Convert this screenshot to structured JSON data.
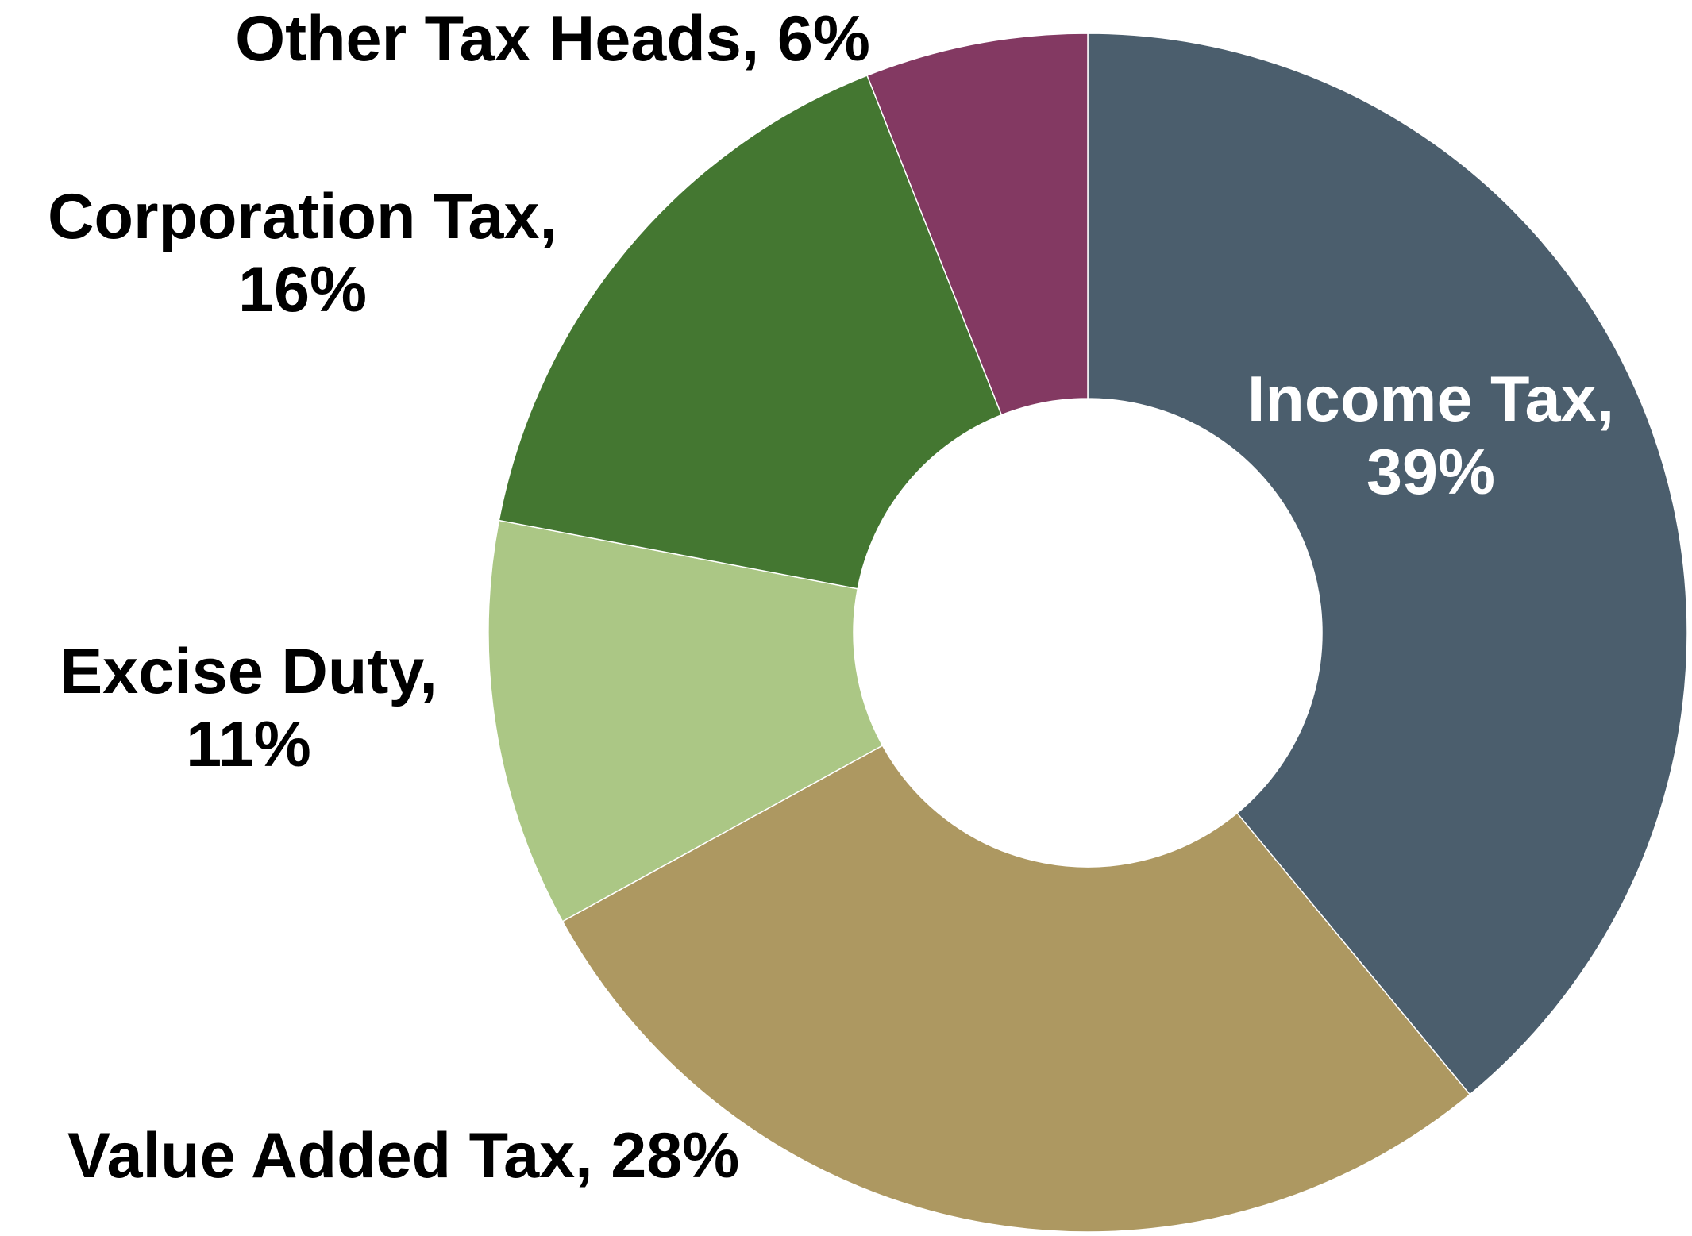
{
  "chart_data": {
    "type": "pie",
    "variant": "donut",
    "start_angle_deg": 0,
    "direction": "clockwise",
    "label_format": "{name}, {value}%",
    "series": [
      {
        "name": "Income Tax",
        "value": 39,
        "color": "#4B5E6D",
        "label_lines": [
          "Income Tax,",
          "39%"
        ],
        "label_color": "#FFFFFF"
      },
      {
        "name": "Value Added Tax",
        "value": 28,
        "color": "#AD9861",
        "label_lines": [
          "Value Added Tax, 28%"
        ],
        "label_color": "#000000"
      },
      {
        "name": "Excise Duty",
        "value": 11,
        "color": "#ABC785",
        "label_lines": [
          "Excise Duty,",
          "11%"
        ],
        "label_color": "#000000"
      },
      {
        "name": "Corporation Tax",
        "value": 16,
        "color": "#447731",
        "label_lines": [
          "Corporation Tax,",
          "16%"
        ],
        "label_color": "#000000"
      },
      {
        "name": "Other Tax Heads",
        "value": 6,
        "color": "#833962",
        "label_lines": [
          "Other Tax Heads, 6%"
        ],
        "label_color": "#000000"
      }
    ]
  }
}
